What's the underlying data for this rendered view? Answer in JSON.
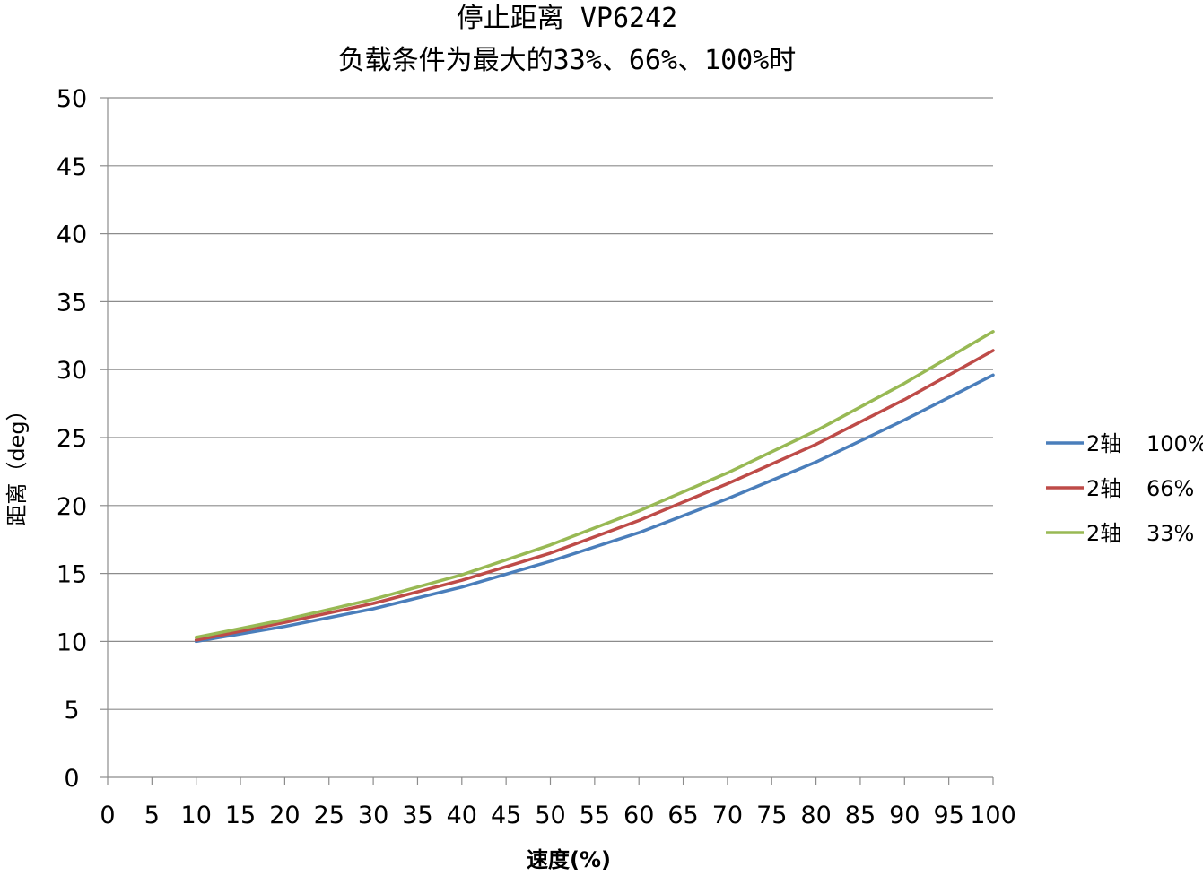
{
  "chart_data": {
    "type": "line",
    "title": [
      "停止距离 VP6242",
      "负载条件为最大的33%、66%、100%时"
    ],
    "xlabel": "速度(%)",
    "ylabel": "距离（deg）",
    "xlim": [
      0,
      100
    ],
    "ylim": [
      0,
      50
    ],
    "x_ticks": [
      "0",
      "5",
      "10",
      "15",
      "20",
      "25",
      "30",
      "35",
      "40",
      "45",
      "50",
      "55",
      "60",
      "65",
      "70",
      "75",
      "80",
      "85",
      "90",
      "95",
      "100"
    ],
    "y_ticks": [
      "0",
      "5",
      "10",
      "15",
      "20",
      "25",
      "30",
      "35",
      "40",
      "45",
      "50"
    ],
    "grid": "horizontal",
    "legend_position": "right",
    "x": [
      10,
      20,
      30,
      40,
      50,
      60,
      70,
      80,
      90,
      100
    ],
    "series": [
      {
        "name": "2轴 100%",
        "legend_prefix": "2轴",
        "legend_value": "100%",
        "color": "#4a7ebb",
        "values": [
          10.0,
          11.1,
          12.4,
          14.0,
          15.9,
          18.0,
          20.5,
          23.2,
          26.3,
          29.6
        ]
      },
      {
        "name": "2轴 66%",
        "legend_prefix": "2轴",
        "legend_value": "66%",
        "color": "#be4b48",
        "values": [
          10.1,
          11.4,
          12.8,
          14.5,
          16.5,
          18.9,
          21.6,
          24.5,
          27.8,
          31.4
        ]
      },
      {
        "name": "2轴 33%",
        "legend_prefix": "2轴",
        "legend_value": "33%",
        "color": "#98b954",
        "values": [
          10.3,
          11.6,
          13.1,
          14.9,
          17.1,
          19.6,
          22.4,
          25.5,
          29.0,
          32.8
        ]
      }
    ]
  }
}
